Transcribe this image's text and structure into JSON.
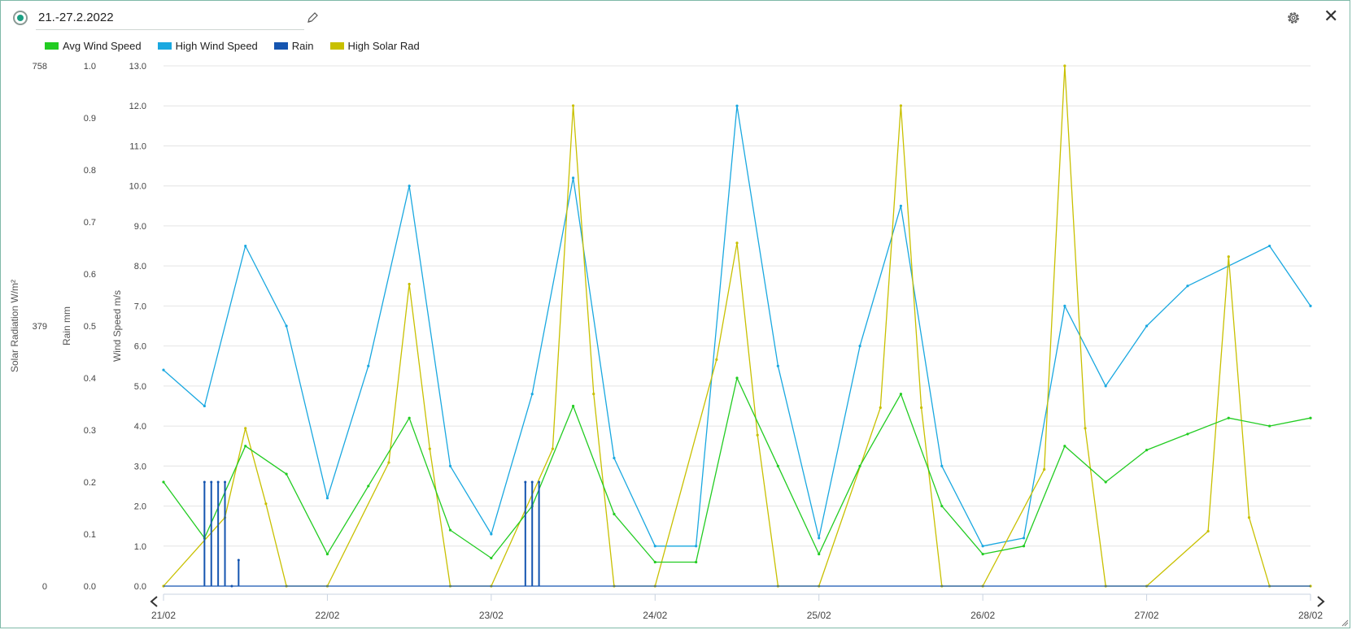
{
  "header": {
    "title": "21.-27.2.2022",
    "edit_icon": "pencil-icon",
    "settings_icon": "gear-icon",
    "close_icon": "close-icon",
    "close_label": "✕"
  },
  "colors": {
    "avg_wind": "#22cc22",
    "high_wind": "#1aa8e0",
    "rain": "#1555b0",
    "solar": "#c8c000",
    "grid": "#e4e4e4",
    "accent": "#1aa083"
  },
  "chart_data": {
    "type": "line",
    "title": "",
    "legend": [
      "Avg Wind Speed",
      "High Wind Speed",
      "Rain",
      "High Solar Rad"
    ],
    "legend_position": "top-left",
    "grid": true,
    "x": {
      "label": "",
      "range": [
        "21/02",
        "28/02"
      ],
      "tick_labels": [
        "21/02",
        "22/02",
        "23/02",
        "24/02",
        "25/02",
        "26/02",
        "27/02",
        "28/02"
      ]
    },
    "axes": [
      {
        "id": "solar",
        "label": "Solar Radiation W/m²",
        "range": [
          0,
          758
        ],
        "tick_labels": [
          "758",
          "379",
          "0"
        ],
        "tick_values": [
          758,
          379,
          0
        ]
      },
      {
        "id": "rain",
        "label": "Rain mm",
        "range": [
          0,
          1
        ],
        "tick_labels": [
          "1.0",
          "0.9",
          "0.8",
          "0.7",
          "0.6",
          "0.5",
          "0.4",
          "0.3",
          "0.2",
          "0.1",
          "0.0"
        ],
        "tick_values": [
          1.0,
          0.9,
          0.8,
          0.7,
          0.6,
          0.5,
          0.4,
          0.3,
          0.2,
          0.1,
          0.0
        ]
      },
      {
        "id": "wind",
        "label": "Wind Speed m/s",
        "range": [
          0,
          13
        ],
        "tick_labels": [
          "13.0",
          "12.0",
          "11.0",
          "10.0",
          "9.0",
          "8.0",
          "7.0",
          "6.0",
          "5.0",
          "4.0",
          "3.0",
          "2.0",
          "1.0",
          "0.0"
        ],
        "tick_values": [
          13,
          12,
          11,
          10,
          9,
          8,
          7,
          6,
          5,
          4,
          3,
          2,
          1,
          0
        ]
      }
    ],
    "series": [
      {
        "name": "Avg Wind Speed",
        "axis": "wind",
        "x": [
          "21/02 00:00",
          "21/02 06:00",
          "21/02 12:00",
          "21/02 18:00",
          "22/02 00:00",
          "22/02 06:00",
          "22/02 12:00",
          "22/02 18:00",
          "23/02 00:00",
          "23/02 06:00",
          "23/02 12:00",
          "23/02 18:00",
          "24/02 00:00",
          "24/02 06:00",
          "24/02 12:00",
          "24/02 18:00",
          "25/02 00:00",
          "25/02 06:00",
          "25/02 12:00",
          "25/02 18:00",
          "26/02 00:00",
          "26/02 06:00",
          "26/02 12:00",
          "26/02 18:00",
          "27/02 00:00",
          "27/02 06:00",
          "27/02 12:00",
          "27/02 18:00",
          "28/02 00:00"
        ],
        "y": [
          2.6,
          1.2,
          3.5,
          2.8,
          0.8,
          2.5,
          4.2,
          1.4,
          0.7,
          2.0,
          4.5,
          1.8,
          0.6,
          0.6,
          5.2,
          3.0,
          0.8,
          3.0,
          4.8,
          2.0,
          0.8,
          1.0,
          3.5,
          2.6,
          3.4,
          3.8,
          4.2,
          4.0,
          4.2
        ]
      },
      {
        "name": "High Wind Speed",
        "axis": "wind",
        "x": [
          "21/02 00:00",
          "21/02 06:00",
          "21/02 12:00",
          "21/02 18:00",
          "22/02 00:00",
          "22/02 06:00",
          "22/02 12:00",
          "22/02 18:00",
          "23/02 00:00",
          "23/02 06:00",
          "23/02 12:00",
          "23/02 18:00",
          "24/02 00:00",
          "24/02 06:00",
          "24/02 12:00",
          "24/02 18:00",
          "25/02 00:00",
          "25/02 06:00",
          "25/02 12:00",
          "25/02 18:00",
          "26/02 00:00",
          "26/02 06:00",
          "26/02 12:00",
          "26/02 18:00",
          "27/02 00:00",
          "27/02 06:00",
          "27/02 12:00",
          "27/02 18:00",
          "28/02 00:00"
        ],
        "y": [
          5.4,
          4.5,
          8.5,
          6.5,
          2.2,
          5.5,
          10.0,
          3.0,
          1.3,
          4.8,
          10.2,
          3.2,
          1.0,
          1.0,
          12.0,
          5.5,
          1.2,
          6.0,
          9.5,
          3.0,
          1.0,
          1.2,
          7.0,
          5.0,
          6.5,
          7.5,
          8.0,
          8.5,
          7.0
        ]
      },
      {
        "name": "Rain",
        "axis": "rain",
        "x": [
          "21/02 06:00",
          "21/02 07:00",
          "21/02 08:00",
          "21/02 09:00",
          "21/02 10:00",
          "21/02 11:00",
          "23/02 05:00",
          "23/02 06:00",
          "23/02 07:00"
        ],
        "y": [
          0.2,
          0.2,
          0.2,
          0.2,
          0.0,
          0.05,
          0.2,
          0.2,
          0.2
        ]
      },
      {
        "name": "High Solar Rad",
        "axis": "solar",
        "x": [
          "21/02 00:00",
          "21/02 09:00",
          "21/02 12:00",
          "21/02 15:00",
          "21/02 18:00",
          "22/02 00:00",
          "22/02 09:00",
          "22/02 12:00",
          "22/02 15:00",
          "22/02 18:00",
          "23/02 00:00",
          "23/02 09:00",
          "23/02 12:00",
          "23/02 15:00",
          "23/02 18:00",
          "24/02 00:00",
          "24/02 09:00",
          "24/02 12:00",
          "24/02 15:00",
          "24/02 18:00",
          "25/02 00:00",
          "25/02 09:00",
          "25/02 12:00",
          "25/02 15:00",
          "25/02 18:00",
          "26/02 00:00",
          "26/02 09:00",
          "26/02 12:00",
          "26/02 15:00",
          "26/02 18:00",
          "27/02 00:00",
          "27/02 09:00",
          "27/02 12:00",
          "27/02 15:00",
          "27/02 18:00",
          "28/02 00:00"
        ],
        "y": [
          0,
          100,
          230,
          120,
          0,
          0,
          180,
          440,
          200,
          0,
          0,
          200,
          700,
          280,
          0,
          0,
          330,
          500,
          220,
          0,
          0,
          260,
          700,
          260,
          0,
          0,
          170,
          758,
          230,
          0,
          0,
          80,
          480,
          100,
          0,
          0
        ]
      }
    ]
  }
}
